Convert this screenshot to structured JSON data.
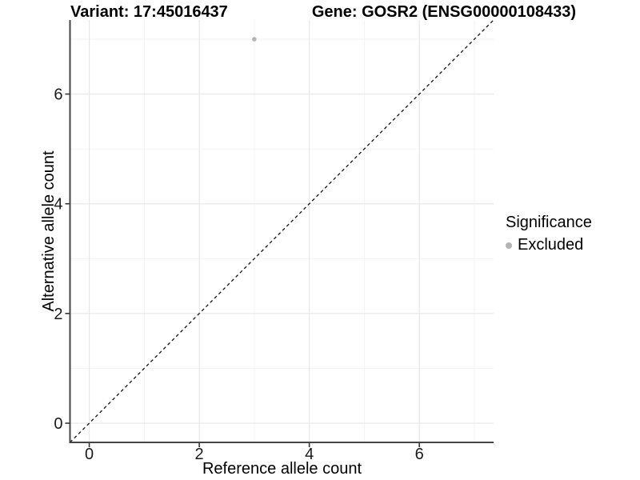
{
  "title": {
    "left": "Variant: 17:45016437",
    "right": "Gene: GOSR2 (ENSG00000108433)"
  },
  "axes": {
    "x": {
      "label": "Reference allele count"
    },
    "y": {
      "label": "Alternative allele count"
    }
  },
  "legend": {
    "title": "Significance",
    "items": [
      {
        "label": "Excluded",
        "color": "#b4b4b4"
      }
    ]
  },
  "chart_data": {
    "type": "scatter",
    "title": "Variant: 17:45016437 — Gene: GOSR2 (ENSG00000108433)",
    "xlabel": "Reference allele count",
    "ylabel": "Alternative allele count",
    "xlim": [
      -0.35,
      7.35
    ],
    "ylim": [
      -0.35,
      7.35
    ],
    "x_major_ticks": [
      0,
      2,
      4,
      6
    ],
    "x_minor_ticks": [
      1,
      3,
      5,
      7
    ],
    "y_major_ticks": [
      0,
      2,
      4,
      6
    ],
    "y_minor_ticks": [
      1,
      3,
      5,
      7
    ],
    "grid": true,
    "legend_position": "right",
    "legend_title": "Significance",
    "series": [
      {
        "name": "Excluded",
        "color": "#b4b4b4",
        "points": [
          {
            "x": 3,
            "y": 7
          }
        ]
      }
    ],
    "reference_line": {
      "description": "identity line y = x",
      "slope": 1,
      "intercept": 0,
      "style": "dashed",
      "color": "#111111"
    }
  },
  "colors": {
    "background": "#ffffff",
    "grid_major": "#e9e9e9",
    "grid_minor": "#f2f2f2",
    "axis_line": "#454545",
    "tick_mark": "#333333",
    "tick_label": "#1a1a1a",
    "point": "#b4b4b4"
  }
}
